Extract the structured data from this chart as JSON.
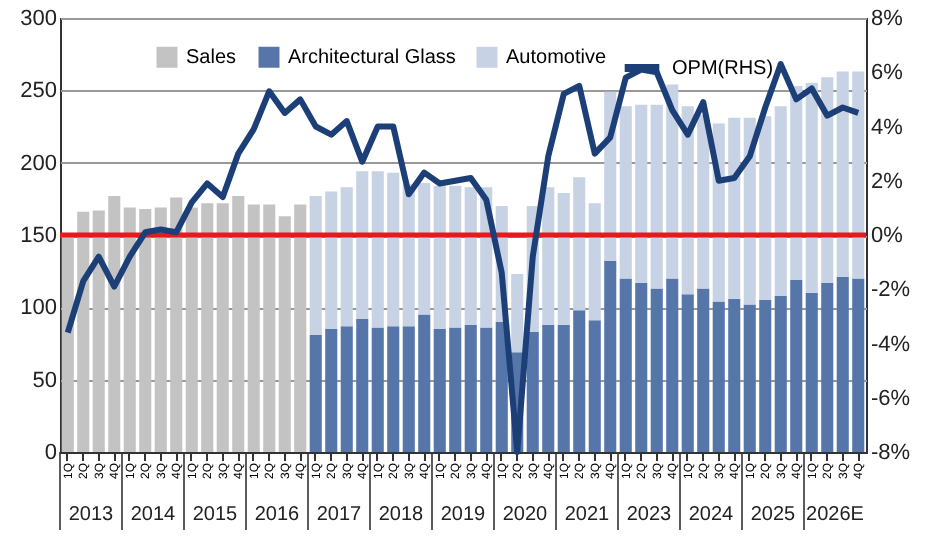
{
  "chart_data": {
    "type": "bar",
    "stacked": true,
    "categories": [
      "1Q",
      "2Q",
      "3Q",
      "4Q",
      "1Q",
      "2Q",
      "3Q",
      "4Q",
      "1Q",
      "2Q",
      "3Q",
      "4Q",
      "1Q",
      "2Q",
      "3Q",
      "4Q",
      "1Q",
      "2Q",
      "3Q",
      "4Q",
      "1Q",
      "2Q",
      "3Q",
      "4Q",
      "1Q",
      "2Q",
      "3Q",
      "4Q",
      "1Q",
      "2Q",
      "3Q",
      "4Q",
      "1Q",
      "2Q",
      "3Q",
      "4Q",
      "1Q",
      "2Q",
      "3Q",
      "4Q",
      "1Q",
      "2Q",
      "3Q",
      "4Q",
      "1Q",
      "2Q",
      "3Q",
      "4Q",
      "1Q",
      "2Q",
      "3Q",
      "4Q"
    ],
    "series": [
      {
        "name": "Sales",
        "color": "#c3c3c3",
        "values": [
          150,
          166,
          167,
          177,
          169,
          168,
          169,
          176,
          169,
          172,
          172,
          177,
          171,
          171,
          163,
          171,
          null,
          null,
          null,
          null,
          null,
          null,
          null,
          null,
          null,
          null,
          null,
          null,
          null,
          null,
          null,
          null,
          null,
          null,
          null,
          null,
          null,
          null,
          null,
          null,
          null,
          null,
          null,
          null,
          null,
          null,
          null,
          null,
          null,
          null,
          null,
          null
        ]
      },
      {
        "name": "Architectural Glass",
        "color": "#5676a9",
        "values": [
          null,
          null,
          null,
          null,
          null,
          null,
          null,
          null,
          null,
          null,
          null,
          null,
          null,
          null,
          null,
          null,
          81,
          85,
          87,
          92,
          86,
          87,
          87,
          95,
          85,
          86,
          88,
          86,
          90,
          69,
          83,
          88,
          88,
          98,
          91,
          132,
          120,
          117,
          113,
          120,
          109,
          113,
          104,
          106,
          102,
          105,
          108,
          119,
          110,
          117,
          121,
          120
        ]
      },
      {
        "name": "Automotive",
        "color": "#c7d2e4",
        "values": [
          null,
          null,
          null,
          null,
          null,
          null,
          null,
          null,
          null,
          null,
          null,
          null,
          null,
          null,
          null,
          null,
          96,
          95,
          96,
          102,
          108,
          106,
          98,
          91,
          99,
          98,
          95,
          97,
          80,
          54,
          87,
          95,
          91,
          92,
          81,
          117,
          119,
          123,
          127,
          134,
          130,
          120,
          123,
          125,
          129,
          127,
          131,
          134,
          145,
          142,
          142,
          143
        ]
      },
      {
        "name": "OPM(RHS)",
        "type": "line",
        "axis": "y2",
        "color": "#1c3f78",
        "values": [
          -3.6,
          -1.7,
          -0.8,
          -1.9,
          -0.8,
          0.1,
          0.2,
          0.1,
          1.2,
          1.9,
          1.4,
          3.0,
          3.9,
          5.3,
          4.5,
          5.0,
          4.0,
          3.7,
          4.2,
          2.7,
          4.0,
          4.0,
          1.5,
          2.3,
          1.9,
          2.0,
          2.1,
          1.3,
          -1.4,
          -8,
          -0.8,
          2.9,
          5.2,
          5.5,
          3.0,
          3.6,
          5.8,
          6.1,
          6.0,
          4.6,
          3.7,
          4.9,
          2.0,
          2.1,
          2.9,
          4.7,
          6.3,
          5.0,
          5.4,
          4.4,
          4.7,
          4.5
        ]
      }
    ],
    "ylim": [
      0,
      300
    ],
    "yticks": [
      0,
      50,
      100,
      150,
      200,
      250,
      300
    ],
    "y2lim": [
      -8,
      8
    ],
    "y2ticks": [
      {
        "value": -8,
        "label": "-8%"
      },
      {
        "value": -6,
        "label": "-6%"
      },
      {
        "value": -4,
        "label": "-4%"
      },
      {
        "value": -2,
        "label": "-2%"
      },
      {
        "value": 0,
        "label": "0%"
      },
      {
        "value": 2,
        "label": "2%"
      },
      {
        "value": 4,
        "label": "4%"
      },
      {
        "value": 6,
        "label": "6%"
      },
      {
        "value": 8,
        "label": "8%"
      }
    ],
    "ref_lines": [
      {
        "axis": "y",
        "value": 150,
        "color": "#e8191b"
      }
    ],
    "annotations": [
      "2013",
      "2014",
      "2015",
      "2016",
      "2017",
      "2018",
      "2019",
      "2020",
      "2021",
      "2023",
      "2024",
      "2025",
      "2026E"
    ],
    "grid": "y",
    "legend": "top"
  }
}
